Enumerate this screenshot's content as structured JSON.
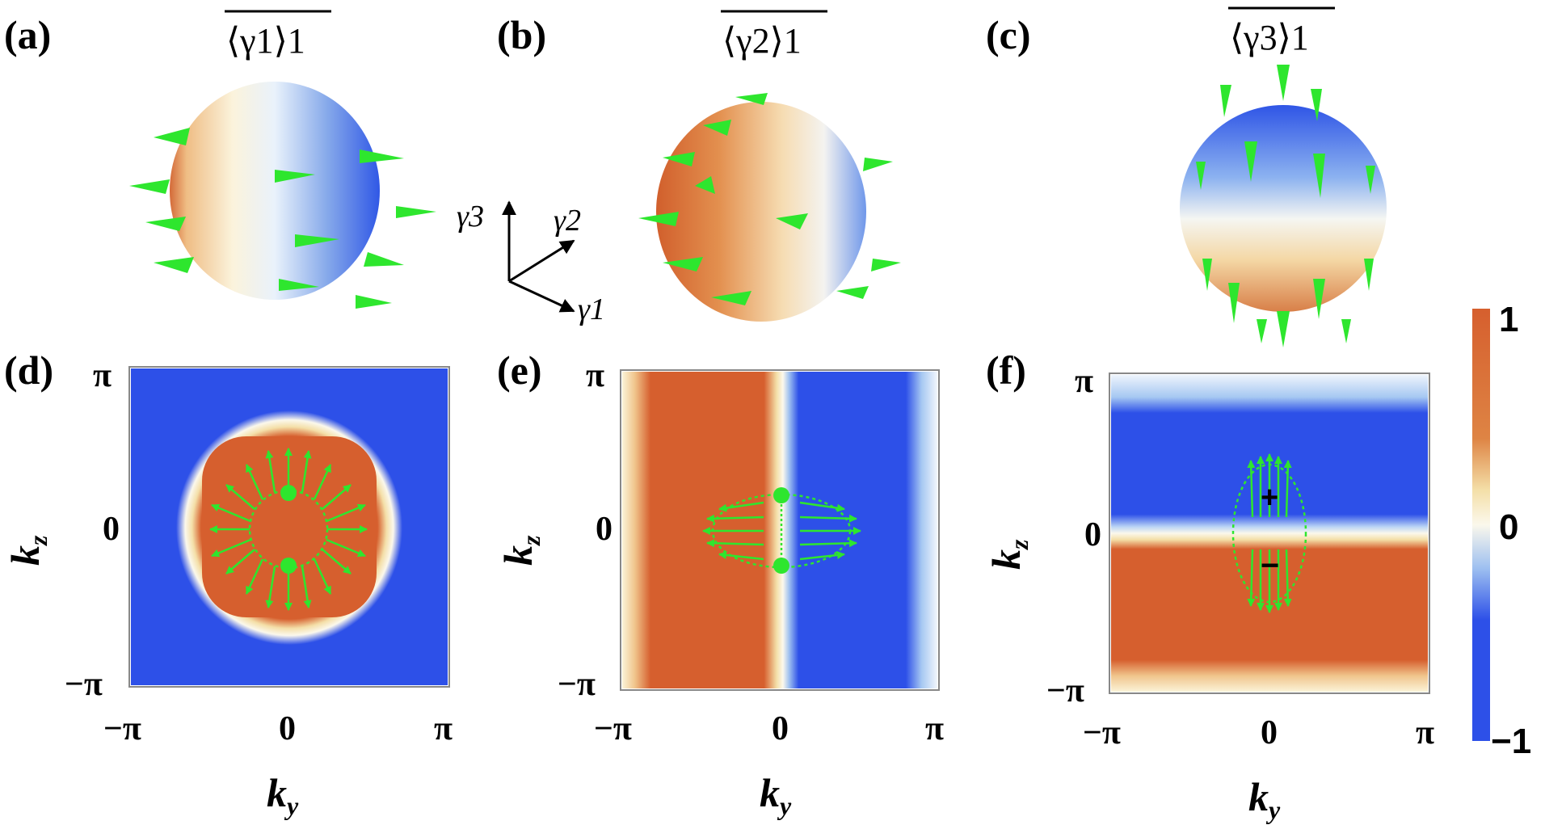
{
  "colors": {
    "orange": "#d65f2e",
    "white": "#fbf8ec",
    "blue": "#2d50e8",
    "cream": "#f4dfa8",
    "lightblue": "#a6c8f2",
    "arrow": "#2ee62e"
  },
  "panels": {
    "a": {
      "label": "(a)",
      "title": "⟨γ1⟩1"
    },
    "b": {
      "label": "(b)",
      "title": "⟨γ2⟩1"
    },
    "c": {
      "label": "(c)",
      "title": "⟨γ3⟩1"
    },
    "d": {
      "label": "(d)"
    },
    "e": {
      "label": "(e)"
    },
    "f": {
      "label": "(f)"
    }
  },
  "axes_triad": {
    "up": "γ3",
    "diag": "γ2",
    "right": "γ1"
  },
  "axis": {
    "xlabel": "k",
    "xsub": "y",
    "ylabel": "k",
    "ysub": "z",
    "xticks": [
      "−π",
      "0",
      "π"
    ],
    "yticks": [
      "π",
      "0",
      "−π"
    ]
  },
  "colorbar": {
    "max_label": "1",
    "mid_label": "0",
    "min_label": "−1",
    "range": [
      -1,
      1
    ]
  },
  "charges": {
    "plus": "+",
    "minus": "−"
  }
}
